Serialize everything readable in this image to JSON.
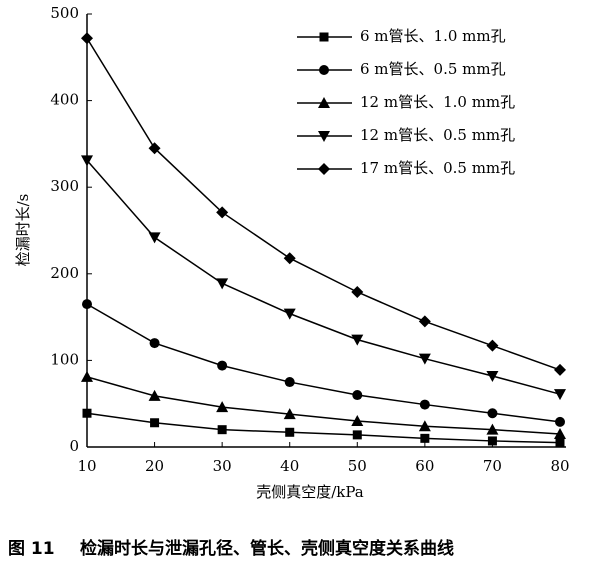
{
  "chart_data": {
    "type": "line",
    "x_label": "壳侧真空度/kPa",
    "y_label": "检漏时长/s",
    "figure_label": "图 11",
    "caption": "检漏时长与泄漏孔径、管长、壳侧真空度关系曲线",
    "x": [
      10,
      20,
      30,
      40,
      50,
      60,
      70,
      80
    ],
    "xlim": [
      10,
      80
    ],
    "xticks": [
      10,
      20,
      30,
      40,
      50,
      60,
      70,
      80
    ],
    "ylim": [
      0,
      500
    ],
    "yticks": [
      0,
      100,
      200,
      300,
      400,
      500
    ],
    "series": [
      {
        "name": "6 m管长、1.0 mm孔",
        "color": "#000000",
        "marker": "square",
        "values": [
          39,
          28,
          20,
          17,
          14,
          10,
          7,
          5
        ]
      },
      {
        "name": "6 m管长、0.5 mm孔",
        "color": "#000000",
        "marker": "circle",
        "values": [
          165,
          120,
          94,
          75,
          60,
          49,
          39,
          29
        ]
      },
      {
        "name": "12 m管长、1.0 mm孔",
        "color": "#000000",
        "marker": "triangle-up",
        "values": [
          81,
          59,
          46,
          38,
          30,
          24,
          20,
          15
        ]
      },
      {
        "name": "12 m管长、0.5 mm孔",
        "color": "#000000",
        "marker": "triangle-down",
        "values": [
          331,
          242,
          189,
          154,
          124,
          102,
          82,
          61
        ]
      },
      {
        "name": "17 m管长、0.5 mm孔",
        "color": "#000000",
        "marker": "diamond",
        "values": [
          472,
          345,
          271,
          218,
          179,
          145,
          117,
          89
        ]
      }
    ]
  }
}
